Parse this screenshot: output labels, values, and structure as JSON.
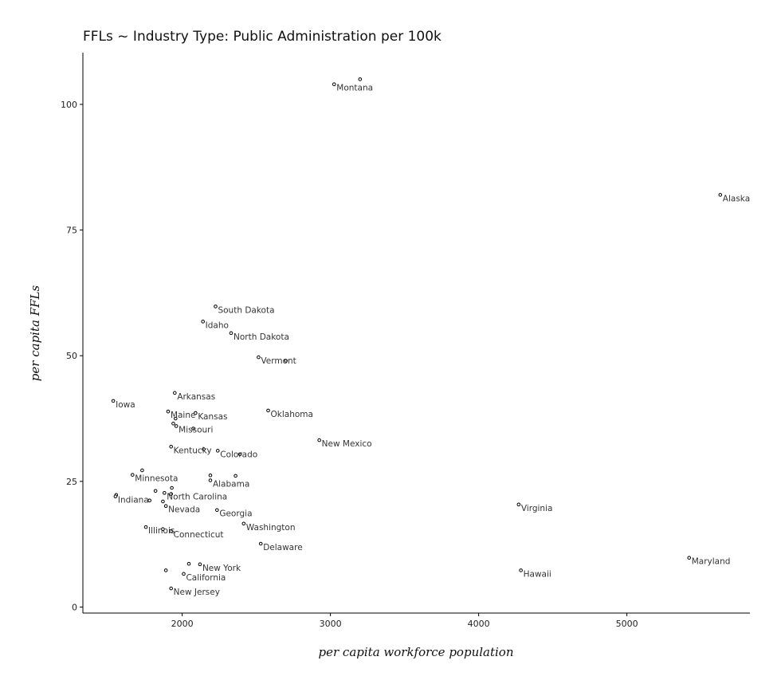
{
  "chart_data": {
    "type": "scatter",
    "title": "FFLs ~ Industry Type: Public Administration per 100k",
    "xlabel": "per capita workforce population",
    "ylabel": "per capita FFLs",
    "xlim": [
      1330,
      5830
    ],
    "ylim": [
      -1.2,
      110.3
    ],
    "xticks": [
      2000,
      3000,
      4000,
      5000
    ],
    "yticks": [
      0,
      25,
      50,
      75,
      100
    ],
    "grid": false,
    "points": [
      {
        "x": 3200,
        "y": 105.0,
        "label": ""
      },
      {
        "x": 3025,
        "y": 104.0,
        "label": "Montana"
      },
      {
        "x": 5630,
        "y": 82.0,
        "label": "Alaska"
      },
      {
        "x": 2225,
        "y": 59.8,
        "label": "South Dakota"
      },
      {
        "x": 2140,
        "y": 56.8,
        "label": "Idaho"
      },
      {
        "x": 2330,
        "y": 54.5,
        "label": "North Dakota"
      },
      {
        "x": 2515,
        "y": 49.7,
        "label": "Vermont"
      },
      {
        "x": 2700,
        "y": 49.0,
        "label": ""
      },
      {
        "x": 1950,
        "y": 42.6,
        "label": "Arkansas"
      },
      {
        "x": 1535,
        "y": 41.0,
        "label": "Iowa"
      },
      {
        "x": 2580,
        "y": 39.1,
        "label": "Oklahoma"
      },
      {
        "x": 1905,
        "y": 38.9,
        "label": "Maine"
      },
      {
        "x": 2090,
        "y": 38.6,
        "label": "Kansas"
      },
      {
        "x": 1955,
        "y": 37.5,
        "label": ""
      },
      {
        "x": 1940,
        "y": 36.5,
        "label": ""
      },
      {
        "x": 1960,
        "y": 36.0,
        "label": "Missouri"
      },
      {
        "x": 2075,
        "y": 35.5,
        "label": ""
      },
      {
        "x": 2925,
        "y": 33.2,
        "label": "New Mexico"
      },
      {
        "x": 1925,
        "y": 31.9,
        "label": "Kentucky"
      },
      {
        "x": 2145,
        "y": 31.4,
        "label": ""
      },
      {
        "x": 2240,
        "y": 31.1,
        "label": "Colorado"
      },
      {
        "x": 2390,
        "y": 30.4,
        "label": ""
      },
      {
        "x": 1730,
        "y": 27.2,
        "label": ""
      },
      {
        "x": 1665,
        "y": 26.3,
        "label": "Minnesota"
      },
      {
        "x": 2190,
        "y": 26.2,
        "label": ""
      },
      {
        "x": 2360,
        "y": 26.1,
        "label": ""
      },
      {
        "x": 2190,
        "y": 25.2,
        "label": "Alabama"
      },
      {
        "x": 1930,
        "y": 23.7,
        "label": ""
      },
      {
        "x": 1820,
        "y": 23.1,
        "label": ""
      },
      {
        "x": 1880,
        "y": 22.7,
        "label": "North Carolina"
      },
      {
        "x": 1925,
        "y": 22.5,
        "label": ""
      },
      {
        "x": 1555,
        "y": 22.3,
        "label": ""
      },
      {
        "x": 1550,
        "y": 22.0,
        "label": "Indiana"
      },
      {
        "x": 1780,
        "y": 21.2,
        "label": ""
      },
      {
        "x": 1870,
        "y": 21.0,
        "label": ""
      },
      {
        "x": 1890,
        "y": 20.1,
        "label": "Nevada"
      },
      {
        "x": 4270,
        "y": 20.4,
        "label": "Virginia"
      },
      {
        "x": 2235,
        "y": 19.3,
        "label": "Georgia"
      },
      {
        "x": 2415,
        "y": 16.6,
        "label": "Washington"
      },
      {
        "x": 1755,
        "y": 15.9,
        "label": "Illinois"
      },
      {
        "x": 1870,
        "y": 15.5,
        "label": ""
      },
      {
        "x": 1925,
        "y": 15.1,
        "label": "Connecticut"
      },
      {
        "x": 2530,
        "y": 12.6,
        "label": "Delaware"
      },
      {
        "x": 5420,
        "y": 9.8,
        "label": "Maryland"
      },
      {
        "x": 2045,
        "y": 8.6,
        "label": ""
      },
      {
        "x": 2120,
        "y": 8.5,
        "label": "New York"
      },
      {
        "x": 1890,
        "y": 7.3,
        "label": ""
      },
      {
        "x": 4285,
        "y": 7.3,
        "label": "Hawaii"
      },
      {
        "x": 2010,
        "y": 6.6,
        "label": "California"
      },
      {
        "x": 1925,
        "y": 3.7,
        "label": "New Jersey"
      }
    ]
  }
}
